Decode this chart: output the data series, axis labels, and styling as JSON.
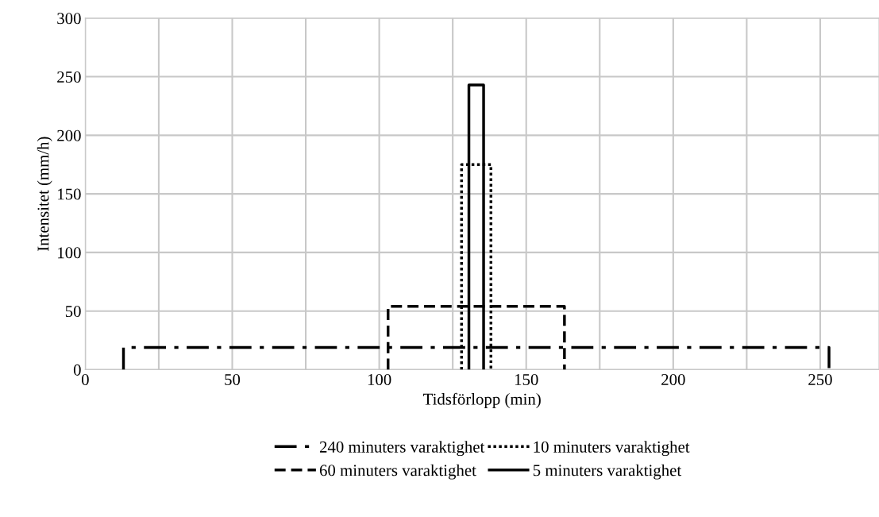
{
  "chart_data": {
    "type": "line",
    "xlabel": "Tidsförlopp (min)",
    "ylabel": "Intensitet (mm/h)",
    "xlim": [
      0,
      270
    ],
    "ylim": [
      0,
      300
    ],
    "xticks": [
      0,
      {
        "value": 25,
        "label": null
      },
      50,
      {
        "value": 75,
        "label": null
      },
      100,
      {
        "value": 125,
        "label": null
      },
      150,
      {
        "value": 175,
        "label": null
      },
      200,
      {
        "value": 225,
        "label": null
      },
      250
    ],
    "yticks": [
      0,
      50,
      100,
      150,
      200,
      250,
      300
    ],
    "grid": true,
    "legend": "bottom",
    "marker": "none",
    "series": [
      {
        "name": "240 minuters varaktighet",
        "color": "#000000",
        "line_style": "dashdot",
        "x": [
          13,
          13,
          253,
          253
        ],
        "values": [
          0,
          19,
          19,
          0
        ]
      },
      {
        "name": "60 minuters varaktighet",
        "color": "#000000",
        "line_style": "dashed",
        "x": [
          103,
          103,
          163,
          163
        ],
        "values": [
          0,
          54,
          54,
          0
        ]
      },
      {
        "name": "10 minuters varaktighet",
        "color": "#000000",
        "line_style": "dotted",
        "x": [
          128,
          128,
          138,
          138
        ],
        "values": [
          0,
          175,
          175,
          0
        ]
      },
      {
        "name": "5 minuters varaktighet",
        "color": "#000000",
        "line_style": "solid",
        "x": [
          130.5,
          130.5,
          135.5,
          135.5
        ],
        "values": [
          0,
          243,
          243,
          0
        ]
      }
    ]
  }
}
